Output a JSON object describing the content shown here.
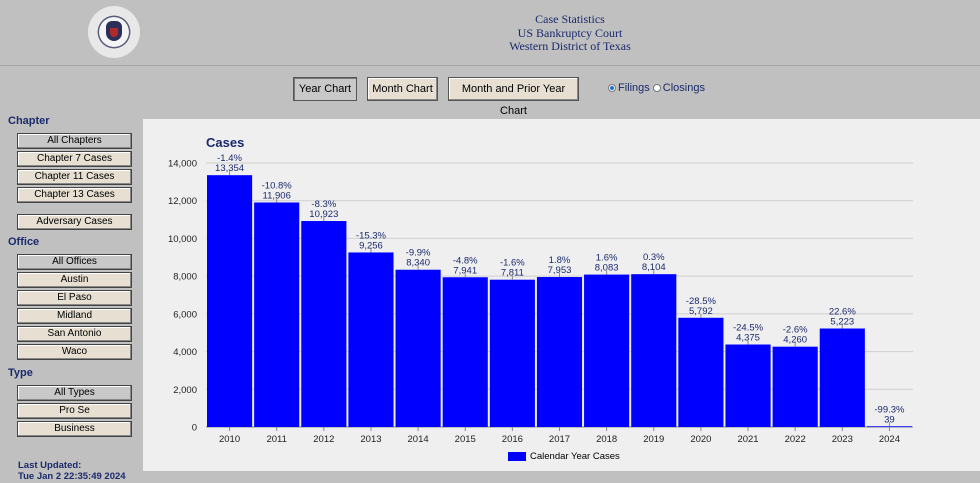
{
  "header": {
    "title_line1": "Case Statistics",
    "title_line2": "US Bankruptcy Court",
    "title_line3": "Western District of Texas"
  },
  "toolbar": {
    "year_chart": "Year Chart",
    "month_chart": "Month Chart",
    "month_prior": "Month and Prior Year Chart",
    "filings": "Filings",
    "closings": "Closings"
  },
  "sidebar": {
    "chapter_title": "Chapter",
    "chapters": [
      "All Chapters",
      "Chapter 7 Cases",
      "Chapter 11 Cases",
      "Chapter 13 Cases"
    ],
    "adversary": "Adversary Cases",
    "office_title": "Office",
    "offices": [
      "All Offices",
      "Austin",
      "El Paso",
      "Midland",
      "San Antonio",
      "Waco"
    ],
    "type_title": "Type",
    "types": [
      "All Types",
      "Pro Se",
      "Business"
    ],
    "updated_label": "Last Updated:",
    "updated_value": "Tue Jan 2 22:35:49 2024"
  },
  "colors": {
    "bar": "#0000ff",
    "label": "#1a2a6c"
  },
  "chart_data": {
    "type": "bar",
    "title": "Cases",
    "categories": [
      "2010",
      "2011",
      "2012",
      "2013",
      "2014",
      "2015",
      "2016",
      "2017",
      "2018",
      "2019",
      "2020",
      "2021",
      "2022",
      "2023",
      "2024"
    ],
    "series": [
      {
        "name": "Calendar Year Cases",
        "values": [
          13354,
          11906,
          10923,
          9256,
          8340,
          7941,
          7811,
          7953,
          8083,
          8104,
          5792,
          4375,
          4260,
          5223,
          39
        ],
        "value_labels": [
          "13,354",
          "11,906",
          "10,923",
          "9,256",
          "8,340",
          "7,941",
          "7,811",
          "7,953",
          "8,083",
          "8,104",
          "5,792",
          "4,375",
          "4,260",
          "5,223",
          "39"
        ],
        "pct_labels": [
          "-1.4%",
          "-10.8%",
          "-8.3%",
          "-15.3%",
          "-9.9%",
          "-4.8%",
          "-1.6%",
          "1.8%",
          "1.6%",
          "0.3%",
          "-28.5%",
          "-24.5%",
          "-2.6%",
          "22.6%",
          "-99.3%"
        ]
      }
    ],
    "ylim": [
      0,
      14000
    ],
    "yticks": [
      0,
      2000,
      4000,
      6000,
      8000,
      10000,
      12000,
      14000
    ],
    "ytick_labels": [
      "0",
      "2,000",
      "4,000",
      "6,000",
      "8,000",
      "10,000",
      "12,000",
      "14,000"
    ],
    "grid": true,
    "legend": "bottom-center"
  }
}
